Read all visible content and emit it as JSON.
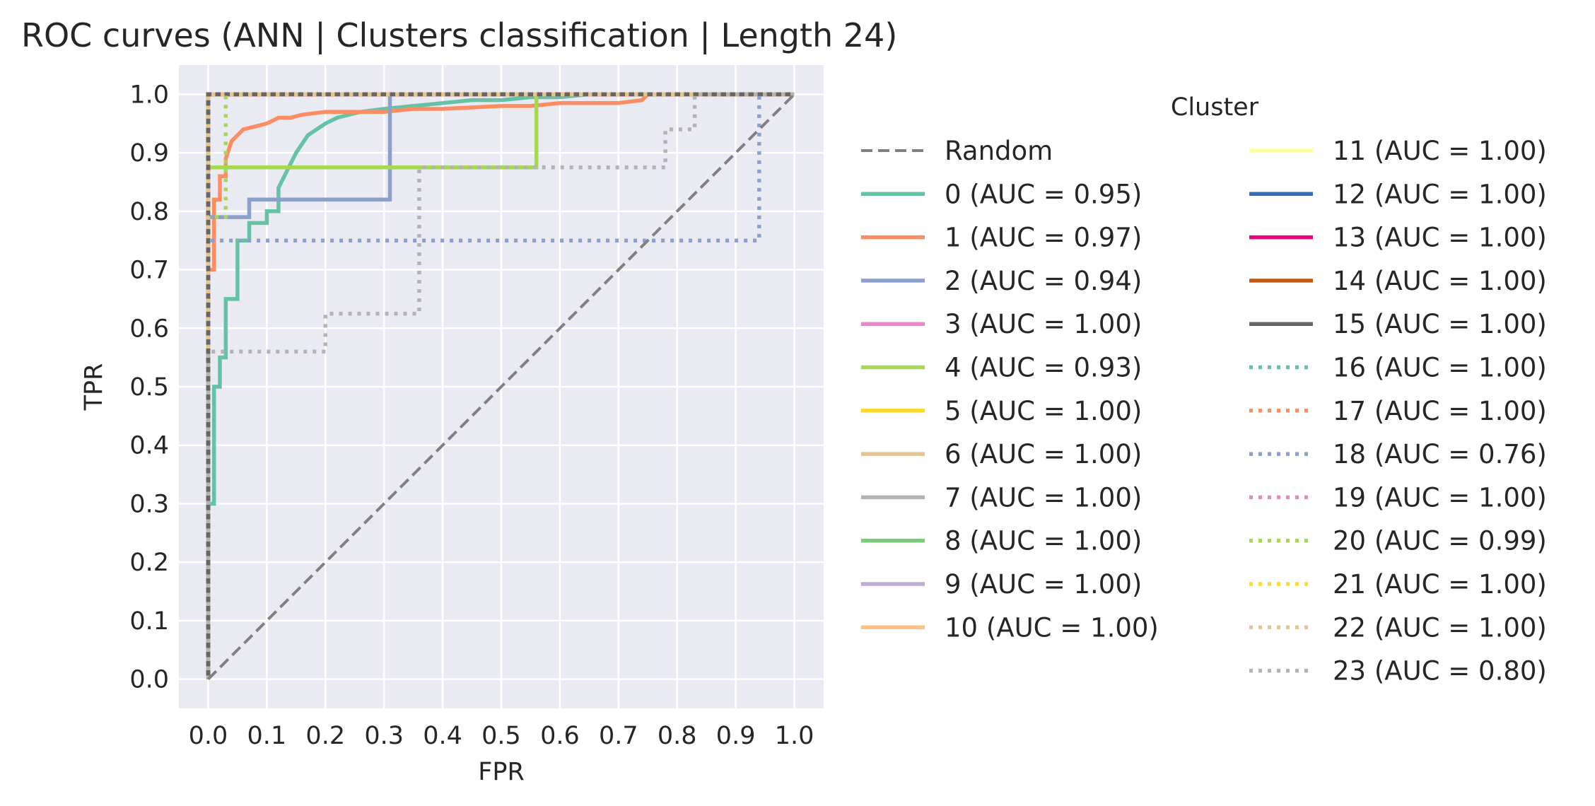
{
  "chart_data": {
    "type": "line",
    "title": "ROC curves (ANN | Clusters classification | Length 24)",
    "xlabel": "FPR",
    "ylabel": "TPR",
    "xlim": [
      -0.05,
      1.05
    ],
    "ylim": [
      -0.05,
      1.05
    ],
    "xticks": [
      0.0,
      0.1,
      0.2,
      0.3,
      0.4,
      0.5,
      0.6,
      0.7,
      0.8,
      0.9,
      1.0
    ],
    "yticks": [
      0.0,
      0.1,
      0.2,
      0.3,
      0.4,
      0.5,
      0.6,
      0.7,
      0.8,
      0.9,
      1.0
    ],
    "grid": true,
    "legend": {
      "title": "Cluster",
      "placement": "right",
      "columns": 2
    },
    "series": [
      {
        "name": "Random",
        "color": "#808080",
        "dash": "dashed",
        "x": [
          0,
          1
        ],
        "y": [
          0,
          1
        ]
      },
      {
        "name": "0 (AUC = 0.95)",
        "color": "#66c2a5",
        "dash": "solid",
        "x": [
          0,
          0,
          0.01,
          0.01,
          0.02,
          0.02,
          0.03,
          0.03,
          0.05,
          0.05,
          0.07,
          0.07,
          0.1,
          0.1,
          0.12,
          0.12,
          0.14,
          0.15,
          0.17,
          0.2,
          0.22,
          0.26,
          0.3,
          0.35,
          0.4,
          0.45,
          0.5,
          0.55,
          0.6,
          0.65,
          0.7,
          0.8
        ],
        "y": [
          0,
          0.3,
          0.3,
          0.5,
          0.5,
          0.55,
          0.55,
          0.65,
          0.65,
          0.75,
          0.75,
          0.78,
          0.78,
          0.8,
          0.8,
          0.84,
          0.88,
          0.9,
          0.93,
          0.95,
          0.96,
          0.97,
          0.975,
          0.98,
          0.985,
          0.99,
          0.99,
          0.995,
          0.995,
          1.0,
          1.0,
          1.0
        ]
      },
      {
        "name": "1 (AUC = 0.97)",
        "color": "#fc8d62",
        "dash": "solid",
        "x": [
          0,
          0,
          0.01,
          0.01,
          0.02,
          0.02,
          0.03,
          0.03,
          0.04,
          0.05,
          0.06,
          0.08,
          0.1,
          0.12,
          0.14,
          0.16,
          0.2,
          0.25,
          0.3,
          0.35,
          0.4,
          0.5,
          0.55,
          0.6,
          0.65,
          0.7,
          0.74,
          0.75,
          0.8,
          1.0
        ],
        "y": [
          0,
          0.7,
          0.7,
          0.82,
          0.82,
          0.86,
          0.86,
          0.89,
          0.92,
          0.93,
          0.94,
          0.945,
          0.95,
          0.96,
          0.96,
          0.965,
          0.97,
          0.97,
          0.97,
          0.975,
          0.975,
          0.98,
          0.98,
          0.985,
          0.985,
          0.985,
          0.99,
          1.0,
          1.0,
          1.0
        ]
      },
      {
        "name": "2 (AUC = 0.94)",
        "color": "#8da0cb",
        "dash": "solid",
        "x": [
          0,
          0,
          0.07,
          0.07,
          0.31,
          0.31,
          1.0
        ],
        "y": [
          0,
          0.79,
          0.79,
          0.82,
          0.82,
          1.0,
          1.0
        ]
      },
      {
        "name": "3 (AUC = 1.00)",
        "color": "#e78ac3",
        "dash": "solid",
        "x": [
          0,
          0,
          1
        ],
        "y": [
          0,
          1,
          1
        ]
      },
      {
        "name": "4 (AUC = 0.93)",
        "color": "#a6d854",
        "dash": "solid",
        "x": [
          0,
          0,
          0.56,
          0.56,
          1.0
        ],
        "y": [
          0,
          0.875,
          0.875,
          1.0,
          1.0
        ]
      },
      {
        "name": "5 (AUC = 1.00)",
        "color": "#ffd92f",
        "dash": "solid",
        "x": [
          0,
          0,
          1
        ],
        "y": [
          0,
          1,
          1
        ]
      },
      {
        "name": "6 (AUC = 1.00)",
        "color": "#e5c494",
        "dash": "solid",
        "x": [
          0,
          0,
          1
        ],
        "y": [
          0,
          1,
          1
        ]
      },
      {
        "name": "7 (AUC = 1.00)",
        "color": "#b3b3b3",
        "dash": "solid",
        "x": [
          0,
          0,
          1
        ],
        "y": [
          0,
          1,
          1
        ]
      },
      {
        "name": "8 (AUC = 1.00)",
        "color": "#7fc97f",
        "dash": "solid",
        "x": [
          0,
          0,
          1
        ],
        "y": [
          0,
          1,
          1
        ]
      },
      {
        "name": "9 (AUC = 1.00)",
        "color": "#beaed4",
        "dash": "solid",
        "x": [
          0,
          0,
          1
        ],
        "y": [
          0,
          1,
          1
        ]
      },
      {
        "name": "10 (AUC = 1.00)",
        "color": "#fdc086",
        "dash": "solid",
        "x": [
          0,
          0,
          1
        ],
        "y": [
          0,
          1,
          1
        ]
      },
      {
        "name": "11 (AUC = 1.00)",
        "color": "#ffff99",
        "dash": "solid",
        "x": [
          0,
          0,
          1
        ],
        "y": [
          0,
          1,
          1
        ]
      },
      {
        "name": "12 (AUC = 1.00)",
        "color": "#386cb0",
        "dash": "solid",
        "x": [
          0,
          0,
          1
        ],
        "y": [
          0,
          1,
          1
        ]
      },
      {
        "name": "13 (AUC = 1.00)",
        "color": "#f0027f",
        "dash": "solid",
        "x": [
          0,
          0,
          1
        ],
        "y": [
          0,
          1,
          1
        ]
      },
      {
        "name": "14 (AUC = 1.00)",
        "color": "#bf5b17",
        "dash": "solid",
        "x": [
          0,
          0,
          1
        ],
        "y": [
          0,
          1,
          1
        ]
      },
      {
        "name": "15 (AUC = 1.00)",
        "color": "#666666",
        "dash": "solid",
        "x": [
          0,
          0,
          1
        ],
        "y": [
          0,
          1,
          1
        ]
      },
      {
        "name": "16 (AUC = 1.00)",
        "color": "#66c2a5",
        "dash": "dotted",
        "x": [
          0,
          0,
          1
        ],
        "y": [
          0,
          1,
          1
        ]
      },
      {
        "name": "17 (AUC = 1.00)",
        "color": "#fc8d62",
        "dash": "dotted",
        "x": [
          0,
          0,
          1
        ],
        "y": [
          0,
          1,
          1
        ]
      },
      {
        "name": "18 (AUC = 0.76)",
        "color": "#8da0cb",
        "dash": "dotted",
        "x": [
          0,
          0,
          0.94,
          0.94,
          1.0
        ],
        "y": [
          0,
          0.75,
          0.75,
          1.0,
          1.0
        ]
      },
      {
        "name": "19 (AUC = 1.00)",
        "color": "#e78ac3",
        "dash": "dotted",
        "x": [
          0,
          0,
          1
        ],
        "y": [
          0,
          1,
          1
        ]
      },
      {
        "name": "20 (AUC = 0.99)",
        "color": "#a6d854",
        "dash": "dotted",
        "x": [
          0,
          0,
          0.03,
          0.03,
          1.0
        ],
        "y": [
          0,
          0.79,
          0.79,
          1.0,
          1.0
        ]
      },
      {
        "name": "21 (AUC = 1.00)",
        "color": "#ffd92f",
        "dash": "dotted",
        "x": [
          0,
          0,
          1
        ],
        "y": [
          0,
          1,
          1
        ]
      },
      {
        "name": "22 (AUC = 1.00)",
        "color": "#e5c494",
        "dash": "dotted",
        "x": [
          0,
          0,
          1
        ],
        "y": [
          0,
          1,
          1
        ]
      },
      {
        "name": "23 (AUC = 0.80)",
        "color": "#b3b3b3",
        "dash": "dotted",
        "x": [
          0,
          0,
          0.2,
          0.2,
          0.36,
          0.36,
          0.78,
          0.78,
          0.83,
          0.83,
          1.0
        ],
        "y": [
          0,
          0.56,
          0.56,
          0.625,
          0.625,
          0.875,
          0.875,
          0.94,
          0.94,
          1.0,
          1.0
        ]
      }
    ]
  }
}
